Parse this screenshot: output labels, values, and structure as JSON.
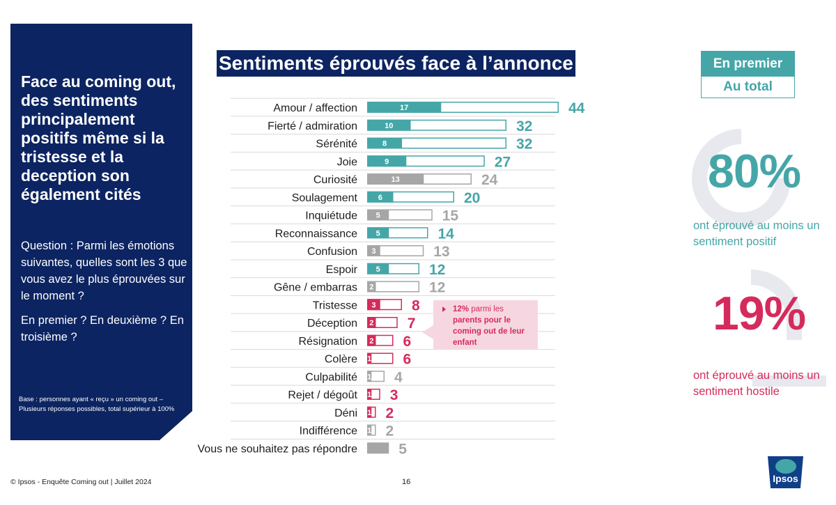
{
  "left_panel": {
    "headline": "Face au coming out, des sentiments principalement positifs même si la tristesse et la deception son également cités",
    "question": "Question : Parmi les émotions suivantes, quelles sont les 3 que vous avez le plus éprouvées sur le moment ?",
    "followup": "En premier ? En deuxième ? En troisième ?",
    "base_note": "Base : personnes ayant « reçu » un coming out – Plusieurs réponses possibles, total supérieur à 100%"
  },
  "legend": {
    "first_label": "En premier",
    "total_label": "Au total"
  },
  "kpis": [
    {
      "value": "80%",
      "label": "ont éprouvé au moins un sentiment positif",
      "color": "#45a6a8"
    },
    {
      "value": "19%",
      "label": "ont éprouvé au moins un sentiment hostile",
      "color": "#d52b5c"
    }
  ],
  "callout": {
    "strong": "12%",
    "text": " parmi les ",
    "strong2": "parents pour le coming out de leur enfant"
  },
  "footer": {
    "left": "© Ipsos - Enquête Coming out | Juillet 2024",
    "page": "16"
  },
  "logo": {
    "text": "Ipsos"
  },
  "colors": {
    "positive": "#45a6a8",
    "neutral": "#a6a6a6",
    "negative": "#d52b5c",
    "navy": "#0c2461"
  },
  "chart_data": {
    "type": "bar",
    "orientation": "horizontal",
    "title": "Sentiments éprouvés face à l’annonce",
    "series_names": [
      "En premier",
      "Au total"
    ],
    "categories": [
      "Amour / affection",
      "Fierté / admiration",
      "Sérénité",
      "Joie",
      "Curiosité",
      "Soulagement",
      "Inquiétude",
      "Reconnaissance",
      "Confusion",
      "Espoir",
      "Gêne / embarras",
      "Tristesse",
      "Déception",
      "Résignation",
      "Colère",
      "Culpabilité",
      "Rejet / dégoût",
      "Déni",
      "Indifférence",
      "Vous ne souhaitez pas répondre"
    ],
    "first": [
      17,
      10,
      8,
      9,
      13,
      6,
      5,
      5,
      3,
      5,
      2,
      3,
      2,
      2,
      1,
      1,
      1,
      1,
      1,
      null
    ],
    "total": [
      44,
      32,
      32,
      27,
      24,
      20,
      15,
      14,
      13,
      12,
      12,
      8,
      7,
      6,
      6,
      4,
      3,
      2,
      2,
      5
    ],
    "groups": [
      "positive",
      "positive",
      "positive",
      "positive",
      "neutral",
      "positive",
      "neutral",
      "positive",
      "neutral",
      "positive",
      "neutral",
      "negative",
      "negative",
      "negative",
      "negative",
      "neutral",
      "negative",
      "negative",
      "neutral",
      "neutral"
    ],
    "xlim": [
      0,
      44
    ]
  }
}
